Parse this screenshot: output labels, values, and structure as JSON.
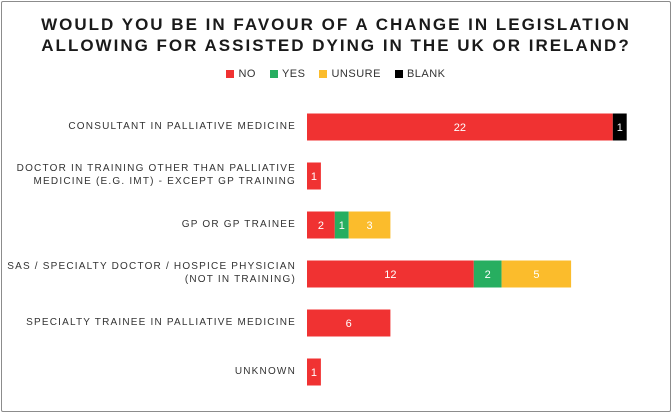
{
  "chart_data": {
    "type": "bar",
    "orientation": "horizontal",
    "stacked": true,
    "title": [
      "WOULD YOU BE IN FAVOUR OF A CHANGE IN LEGISLATION",
      "ALLOWING FOR ASSISTED DYING IN THE UK OR IRELAND?"
    ],
    "legend_position": "top",
    "categories": [
      [
        "CONSULTANT IN PALLIATIVE MEDICINE"
      ],
      [
        "DOCTOR IN TRAINING OTHER THAN PALLIATIVE",
        "MEDICINE (E.G. IMT) - EXCEPT GP TRAINING"
      ],
      [
        "GP OR GP TRAINEE"
      ],
      [
        "SAS / SPECIALTY DOCTOR / HOSPICE PHYSICIAN",
        "(NOT IN TRAINING)"
      ],
      [
        "SPECIALTY TRAINEE IN PALLIATIVE MEDICINE"
      ],
      [
        "UNKNOWN"
      ]
    ],
    "series": [
      {
        "name": "NO",
        "color": "#f03232",
        "values": [
          22,
          1,
          2,
          12,
          6,
          1
        ]
      },
      {
        "name": "YES",
        "color": "#27ae60",
        "values": [
          0,
          0,
          1,
          2,
          0,
          0
        ]
      },
      {
        "name": "UNSURE",
        "color": "#fbbc2c",
        "values": [
          0,
          0,
          3,
          5,
          0,
          0
        ]
      },
      {
        "name": "BLANK",
        "color": "#000000",
        "values": [
          1,
          0,
          0,
          0,
          0,
          0
        ]
      }
    ],
    "xlim": [
      0,
      23
    ],
    "grid": false
  }
}
